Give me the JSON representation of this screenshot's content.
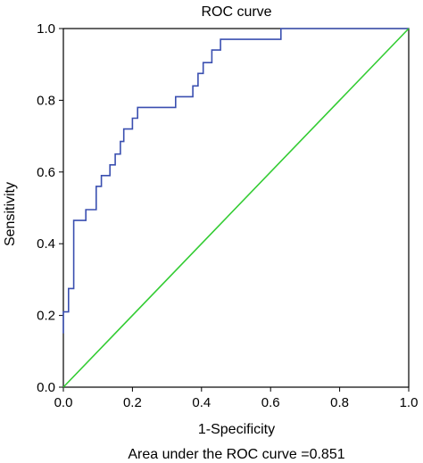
{
  "chart_data": {
    "type": "line",
    "title": "ROC curve",
    "xlabel": "1-Specificity",
    "ylabel": "Sensitivity",
    "annotation": "Area under the ROC curve =0.851",
    "xlim": [
      0,
      1
    ],
    "ylim": [
      0,
      1
    ],
    "xticks": [
      "0.0",
      "0.2",
      "0.4",
      "0.6",
      "0.8",
      "1.0"
    ],
    "yticks": [
      "0.0",
      "0.2",
      "0.4",
      "0.6",
      "0.8",
      "1.0"
    ],
    "grid": false,
    "series": [
      {
        "color": "#3a4fb0",
        "points": [
          [
            0.0,
            0.15
          ],
          [
            0.0,
            0.21
          ],
          [
            0.015,
            0.21
          ],
          [
            0.015,
            0.275
          ],
          [
            0.03,
            0.275
          ],
          [
            0.03,
            0.465
          ],
          [
            0.065,
            0.465
          ],
          [
            0.065,
            0.495
          ],
          [
            0.095,
            0.495
          ],
          [
            0.095,
            0.56
          ],
          [
            0.11,
            0.56
          ],
          [
            0.11,
            0.59
          ],
          [
            0.135,
            0.59
          ],
          [
            0.135,
            0.62
          ],
          [
            0.15,
            0.62
          ],
          [
            0.15,
            0.65
          ],
          [
            0.165,
            0.65
          ],
          [
            0.165,
            0.685
          ],
          [
            0.175,
            0.685
          ],
          [
            0.175,
            0.72
          ],
          [
            0.2,
            0.72
          ],
          [
            0.2,
            0.75
          ],
          [
            0.215,
            0.75
          ],
          [
            0.215,
            0.78
          ],
          [
            0.325,
            0.78
          ],
          [
            0.325,
            0.81
          ],
          [
            0.375,
            0.81
          ],
          [
            0.375,
            0.84
          ],
          [
            0.39,
            0.84
          ],
          [
            0.39,
            0.875
          ],
          [
            0.405,
            0.875
          ],
          [
            0.405,
            0.905
          ],
          [
            0.43,
            0.905
          ],
          [
            0.43,
            0.94
          ],
          [
            0.455,
            0.94
          ],
          [
            0.455,
            0.97
          ],
          [
            0.63,
            0.97
          ],
          [
            0.63,
            1.0
          ],
          [
            1.0,
            1.0
          ]
        ]
      },
      {
        "color": "#33cc33",
        "points": [
          [
            0,
            0
          ],
          [
            1,
            1
          ]
        ]
      }
    ]
  }
}
